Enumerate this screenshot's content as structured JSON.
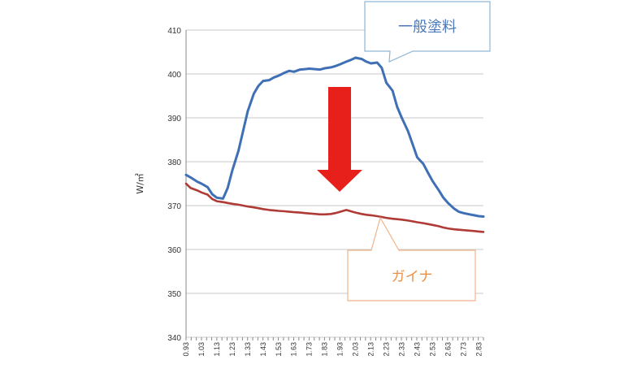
{
  "chart_data": {
    "type": "line",
    "ylabel": "W/㎡",
    "xlabel": "",
    "title": "",
    "ylim": [
      340,
      410
    ],
    "yticks": [
      340,
      350,
      360,
      370,
      380,
      390,
      400,
      410
    ],
    "grid": true,
    "categories": [
      "0.93",
      "1.03",
      "1.13",
      "1.23",
      "1.33",
      "1.43",
      "1.53",
      "1.63",
      "1.73",
      "1.83",
      "1.93",
      "2.03",
      "2.13",
      "2.23",
      "2.33",
      "2.43",
      "2.53",
      "2.63",
      "2.73",
      "2.83"
    ],
    "x": [
      0.93,
      0.96,
      1.0,
      1.03,
      1.07,
      1.1,
      1.13,
      1.17,
      1.2,
      1.23,
      1.27,
      1.3,
      1.33,
      1.37,
      1.4,
      1.43,
      1.47,
      1.5,
      1.53,
      1.57,
      1.6,
      1.63,
      1.67,
      1.7,
      1.73,
      1.77,
      1.8,
      1.83,
      1.87,
      1.9,
      1.93,
      1.97,
      2.0,
      2.03,
      2.07,
      2.1,
      2.13,
      2.17,
      2.2,
      2.23,
      2.27,
      2.3,
      2.33,
      2.37,
      2.4,
      2.43,
      2.47,
      2.5,
      2.53,
      2.57,
      2.6,
      2.63,
      2.67,
      2.7,
      2.73,
      2.77,
      2.8,
      2.83,
      2.86
    ],
    "series": [
      {
        "name": "一般塗料",
        "color": "#3f6fb5",
        "values": [
          377,
          376.4,
          375.5,
          375,
          374.2,
          372.6,
          371.8,
          371.6,
          374,
          378,
          382.5,
          387,
          391.5,
          395.5,
          397.3,
          398.4,
          398.6,
          399.2,
          399.6,
          400.3,
          400.7,
          400.5,
          401,
          401.1,
          401.2,
          401.1,
          401,
          401.3,
          401.5,
          401.8,
          402.2,
          402.8,
          403.2,
          403.7,
          403.4,
          402.8,
          402.4,
          402.6,
          401.4,
          398,
          396.2,
          392.5,
          390,
          387,
          384,
          381,
          379.5,
          377.5,
          375.6,
          373.5,
          371.8,
          370.6,
          369.3,
          368.6,
          368.3,
          368.0,
          367.8,
          367.6,
          367.5
        ]
      },
      {
        "name": "ガイナ",
        "color": "#b03a35",
        "values": [
          375,
          374,
          373.5,
          373,
          372.5,
          371.5,
          371,
          370.8,
          370.6,
          370.4,
          370.2,
          370,
          369.8,
          369.6,
          369.4,
          369.2,
          369,
          368.9,
          368.8,
          368.7,
          368.6,
          368.5,
          368.4,
          368.3,
          368.2,
          368.1,
          368,
          368,
          368.1,
          368.3,
          368.6,
          369,
          368.7,
          368.4,
          368.1,
          367.9,
          367.8,
          367.6,
          367.4,
          367.2,
          367,
          366.9,
          366.8,
          366.6,
          366.4,
          366.2,
          366,
          365.8,
          365.6,
          365.3,
          365,
          364.8,
          364.6,
          364.5,
          364.4,
          364.3,
          364.2,
          364.1,
          364
        ]
      }
    ],
    "annotations": [
      {
        "text": "一般塗料",
        "color": "#4a78b8"
      },
      {
        "text": "ガイナ",
        "color": "#e8914a"
      }
    ],
    "arrow_color": "#e8201c"
  }
}
